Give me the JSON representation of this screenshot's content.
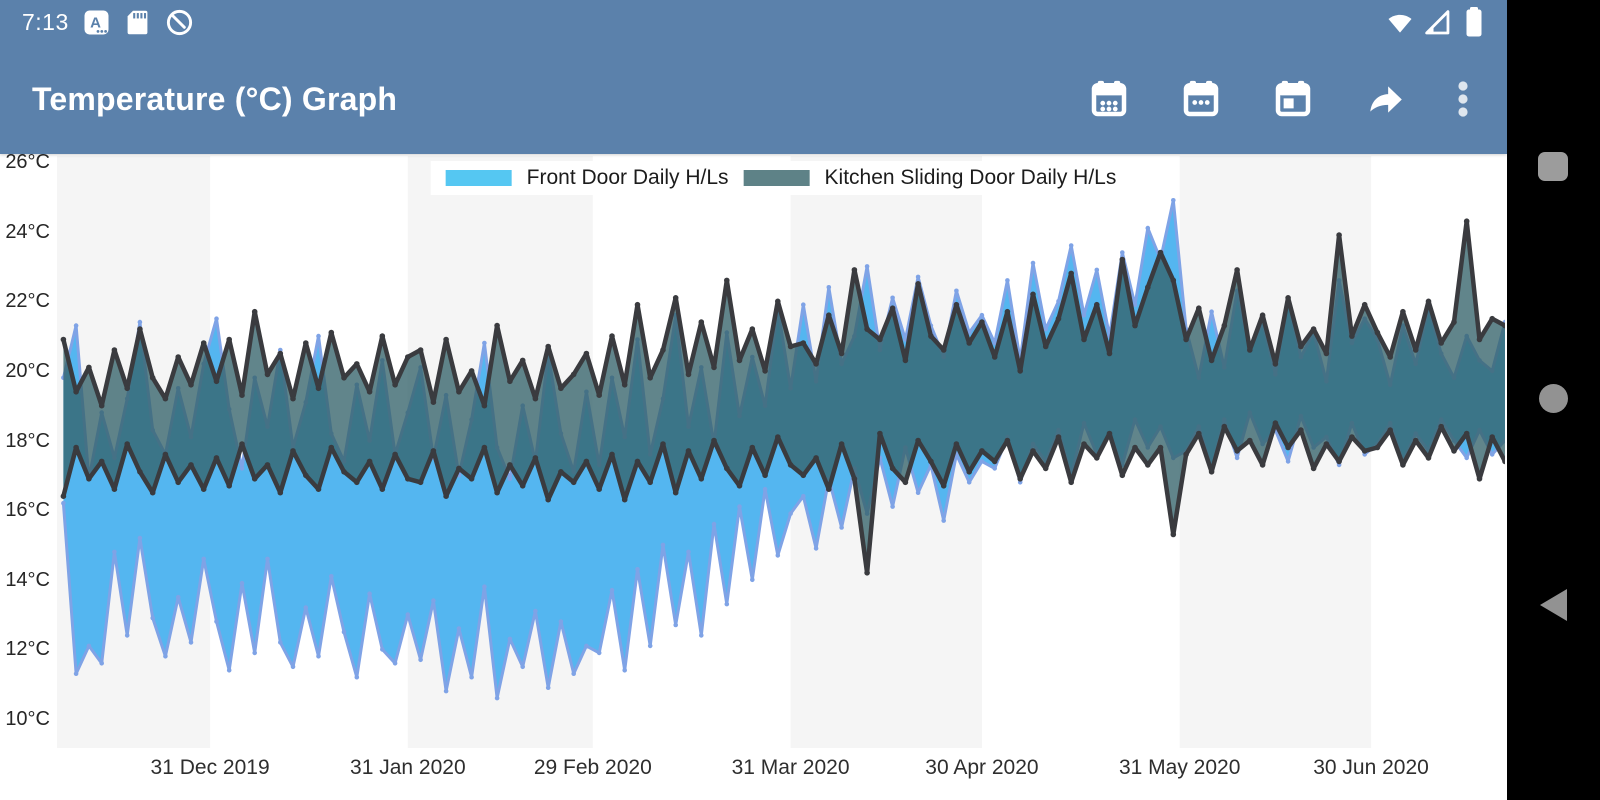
{
  "status_bar": {
    "time": "7:13",
    "left_icons": [
      "keyboard-a-icon",
      "sd-card-icon",
      "android-q-icon"
    ],
    "right_icons": [
      "wifi-icon",
      "cellular-signal-icon",
      "battery-icon"
    ]
  },
  "app_bar": {
    "title": "Temperature (°C) Graph",
    "color": "#5b81ab",
    "actions": [
      "view-month",
      "view-week",
      "view-day",
      "share",
      "overflow-menu"
    ]
  },
  "nav_bar": {
    "buttons": [
      "recents",
      "home",
      "back"
    ],
    "background": "#000000",
    "button_color": "#929292"
  },
  "chart_data": {
    "type": "area-range",
    "title": "",
    "ylabel": "Temperature (°C)",
    "xlabel": "",
    "grid": "alternating-month-bands",
    "band_shade_color": "#f5f5f5",
    "legend_position": "top-center",
    "domain_days": 227,
    "sample": {
      "first_day": 1,
      "step_days": 2
    },
    "y_axis": {
      "max": 26,
      "min": 10,
      "tick_step": 2,
      "unit": "°C",
      "ticks": [
        {
          "label": "26°C",
          "value": 26
        },
        {
          "label": "24°C",
          "value": 24
        },
        {
          "label": "22°C",
          "value": 22
        },
        {
          "label": "20°C",
          "value": 20
        },
        {
          "label": "18°C",
          "value": 18
        },
        {
          "label": "16°C",
          "value": 16
        },
        {
          "label": "14°C",
          "value": 14
        },
        {
          "label": "12°C",
          "value": 12
        },
        {
          "label": "10°C",
          "value": 10
        }
      ]
    },
    "x_ticks": [
      {
        "label": "31 Dec 2019",
        "day": 24
      },
      {
        "label": "31 Jan 2020",
        "day": 55
      },
      {
        "label": "29 Feb 2020",
        "day": 84
      },
      {
        "label": "31 Mar 2020",
        "day": 115
      },
      {
        "label": "30 Apr 2020",
        "day": 145
      },
      {
        "label": "31 May 2020",
        "day": 176
      },
      {
        "label": "30 Jun 2020",
        "day": 206
      }
    ],
    "month_bands": [
      {
        "month": "Dec 2019",
        "start_day": 0,
        "end_day": 24,
        "shaded": true
      },
      {
        "month": "Jan 2020",
        "start_day": 24,
        "end_day": 55,
        "shaded": false
      },
      {
        "month": "Feb 2020",
        "start_day": 55,
        "end_day": 84,
        "shaded": true
      },
      {
        "month": "Mar 2020",
        "start_day": 84,
        "end_day": 115,
        "shaded": false
      },
      {
        "month": "Apr 2020",
        "start_day": 115,
        "end_day": 145,
        "shaded": true
      },
      {
        "month": "May 2020",
        "start_day": 145,
        "end_day": 176,
        "shaded": false
      },
      {
        "month": "Jun 2020",
        "start_day": 176,
        "end_day": 206,
        "shaded": true
      },
      {
        "month": "Jul 2020",
        "start_day": 206,
        "end_day": 227,
        "shaded": false
      }
    ],
    "series": [
      {
        "name": "Front Door Daily H/Ls",
        "legend_color": "#55c7f2",
        "fill": "#54b6f0",
        "stroke": "#7fa3e6",
        "stroke_width": 3,
        "marker_radius": 2.3,
        "high": [
          19.8,
          21.3,
          16.9,
          18.8,
          17.5,
          19.2,
          21.4,
          18.3,
          17.6,
          19.5,
          18.1,
          20.2,
          21.5,
          18.9,
          17.2,
          19.8,
          18.4,
          20.6,
          17.8,
          19.1,
          21.0,
          18.2,
          17.4,
          19.6,
          18.0,
          20.3,
          17.6,
          18.8,
          20.1,
          17.5,
          19.3,
          17.0,
          18.6,
          20.8,
          17.8,
          16.9,
          19.0,
          17.4,
          20.5,
          18.2,
          17.1,
          19.4,
          17.3,
          19.8,
          18.1,
          20.9,
          17.6,
          19.2,
          21.6,
          18.4,
          20.1,
          17.9,
          21.1,
          18.7,
          20.4,
          19.0,
          21.8,
          19.5,
          21.9,
          19.7,
          22.4,
          20.2,
          21.0,
          23.0,
          20.6,
          22.1,
          20.9,
          22.7,
          21.3,
          20.4,
          22.3,
          21.1,
          21.6,
          20.8,
          22.6,
          20.3,
          23.1,
          21.2,
          22.0,
          23.6,
          21.6,
          22.9,
          21.0,
          23.4,
          21.9,
          24.1,
          23.2,
          24.9,
          21.2,
          19.8,
          21.7,
          20.1,
          22.3,
          20.6,
          21.4,
          19.9,
          22.0,
          20.4,
          21.1,
          19.7,
          22.6,
          20.8,
          21.5,
          20.9,
          19.6,
          21.3,
          20.2,
          21.8,
          20.5,
          19.8,
          21.0,
          20.3,
          20.0,
          21.4
        ],
        "low": [
          16.2,
          11.3,
          12.1,
          11.6,
          14.8,
          12.4,
          15.2,
          12.9,
          11.8,
          13.5,
          12.2,
          14.6,
          12.8,
          11.4,
          13.9,
          11.9,
          14.6,
          12.2,
          11.5,
          13.2,
          11.8,
          14.1,
          12.5,
          11.2,
          13.6,
          12.0,
          11.6,
          13.0,
          11.7,
          13.4,
          10.8,
          12.6,
          11.2,
          13.8,
          10.6,
          12.3,
          11.5,
          13.1,
          10.9,
          12.8,
          11.3,
          12.1,
          11.9,
          13.7,
          11.4,
          14.3,
          12.1,
          15.0,
          12.7,
          14.8,
          12.4,
          15.6,
          13.3,
          16.1,
          14.0,
          16.6,
          14.7,
          15.9,
          16.4,
          14.9,
          16.9,
          15.5,
          17.2,
          15.9,
          17.5,
          16.1,
          17.8,
          16.5,
          17.3,
          15.7,
          17.6,
          16.8,
          17.4,
          17.2,
          18.1,
          16.8,
          17.9,
          17.4,
          18.3,
          17.0,
          18.5,
          17.6,
          18.2,
          17.3,
          18.6,
          17.8,
          18.4,
          17.5,
          17.7,
          18.4,
          17.2,
          18.6,
          17.5,
          18.8,
          17.9,
          18.3,
          17.4,
          18.7,
          17.8,
          18.1,
          17.3,
          18.5,
          17.6,
          17.9,
          18.5,
          17.4,
          18.2,
          17.7,
          18.6,
          18.0,
          17.5,
          18.3,
          17.6,
          18.0
        ]
      },
      {
        "name": "Kitchen Sliding Door Daily H/Ls",
        "legend_color": "#5e8287",
        "fill": "rgba(52,99,106,0.78)",
        "stroke": "#3a3b3f",
        "stroke_width": 4.5,
        "marker_radius": 2.8,
        "high": [
          20.9,
          19.4,
          20.1,
          19.0,
          20.6,
          19.5,
          21.2,
          19.8,
          19.2,
          20.4,
          19.6,
          20.8,
          19.7,
          20.9,
          19.3,
          21.7,
          19.9,
          20.5,
          19.2,
          20.8,
          19.5,
          21.1,
          19.8,
          20.2,
          19.4,
          21.0,
          19.6,
          20.4,
          20.6,
          19.1,
          20.9,
          19.4,
          20.0,
          19.0,
          21.3,
          19.7,
          20.3,
          19.2,
          20.7,
          19.5,
          19.9,
          20.5,
          19.3,
          21.0,
          19.6,
          21.9,
          19.8,
          20.6,
          22.1,
          19.9,
          21.4,
          20.1,
          22.6,
          20.3,
          21.2,
          20.0,
          22.0,
          20.7,
          20.8,
          20.2,
          21.6,
          20.5,
          22.9,
          21.2,
          20.9,
          21.8,
          20.3,
          22.5,
          21.0,
          20.6,
          21.9,
          20.8,
          21.4,
          20.4,
          21.7,
          20.0,
          22.2,
          20.7,
          21.5,
          22.8,
          20.9,
          21.9,
          20.5,
          23.2,
          21.3,
          22.4,
          23.4,
          22.6,
          20.9,
          21.8,
          20.3,
          21.3,
          22.9,
          20.6,
          21.6,
          20.2,
          22.1,
          20.7,
          21.2,
          20.5,
          23.9,
          21.0,
          21.9,
          21.1,
          20.4,
          21.7,
          20.6,
          22.0,
          20.8,
          21.4,
          24.3,
          20.9,
          21.5,
          21.3
        ],
        "low": [
          16.4,
          17.8,
          16.9,
          17.4,
          16.6,
          17.9,
          17.1,
          16.5,
          17.6,
          16.8,
          17.3,
          16.6,
          17.5,
          16.7,
          17.9,
          16.9,
          17.3,
          16.5,
          17.7,
          17.0,
          16.6,
          17.8,
          17.1,
          16.8,
          17.4,
          16.6,
          17.6,
          16.9,
          16.8,
          17.7,
          16.4,
          17.2,
          16.9,
          17.8,
          16.5,
          17.3,
          16.7,
          17.5,
          16.3,
          17.1,
          16.8,
          17.4,
          16.6,
          17.6,
          16.3,
          17.4,
          16.8,
          17.9,
          16.5,
          17.7,
          16.9,
          18.0,
          17.2,
          16.7,
          17.8,
          17.0,
          18.1,
          17.3,
          17.0,
          17.5,
          16.6,
          17.9,
          16.9,
          14.2,
          18.2,
          17.2,
          16.8,
          18.0,
          17.4,
          16.7,
          17.9,
          17.1,
          17.7,
          17.4,
          18.0,
          16.9,
          17.7,
          17.2,
          18.1,
          16.8,
          17.9,
          17.5,
          18.2,
          17.0,
          17.8,
          17.3,
          17.8,
          15.3,
          17.6,
          18.2,
          17.1,
          18.4,
          17.7,
          18.0,
          17.3,
          18.5,
          17.8,
          18.3,
          17.2,
          17.9,
          17.4,
          18.1,
          17.7,
          17.8,
          18.3,
          17.3,
          18.0,
          17.5,
          18.4,
          17.7,
          18.2,
          16.9,
          18.1,
          17.4
        ]
      }
    ]
  }
}
